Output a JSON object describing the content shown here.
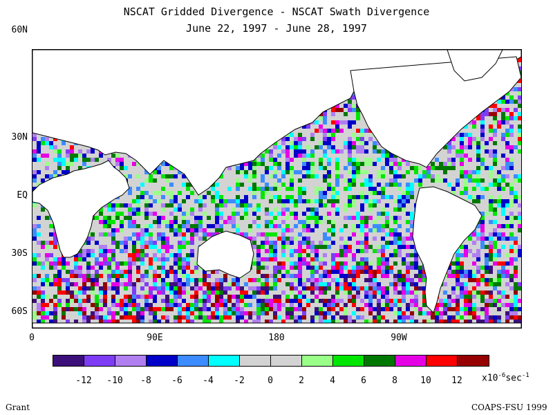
{
  "title_line1": "NSCAT Gridded Divergence - NSCAT Swath Divergence",
  "title_line2": "June 22, 1997 - June 28, 1997",
  "lat_labels": [
    "60N",
    "30N",
    "EQ",
    "30S",
    "60S"
  ],
  "lon_labels": [
    "0",
    "90E",
    "180",
    "90W"
  ],
  "colorbar": {
    "colors": [
      "#3c0f7a",
      "#7f3cf5",
      "#b07ff0",
      "#0000c8",
      "#3c8cff",
      "#00ffff",
      "#d3d3d3",
      "#d3d3d3",
      "#99ff88",
      "#00e600",
      "#007800",
      "#e600e6",
      "#ff0000",
      "#960000"
    ],
    "tick_labels": [
      "-12",
      "-10",
      "-8",
      "-6",
      "-4",
      "-2",
      "0",
      "2",
      "4",
      "6",
      "8",
      "10",
      "12"
    ],
    "units_prefix": "x10",
    "units_exp": "-6",
    "units_suffix": "sec",
    "units_exp2": "-1"
  },
  "footer_left": "Grant",
  "footer_right": "COAPS-FSU 1999"
}
